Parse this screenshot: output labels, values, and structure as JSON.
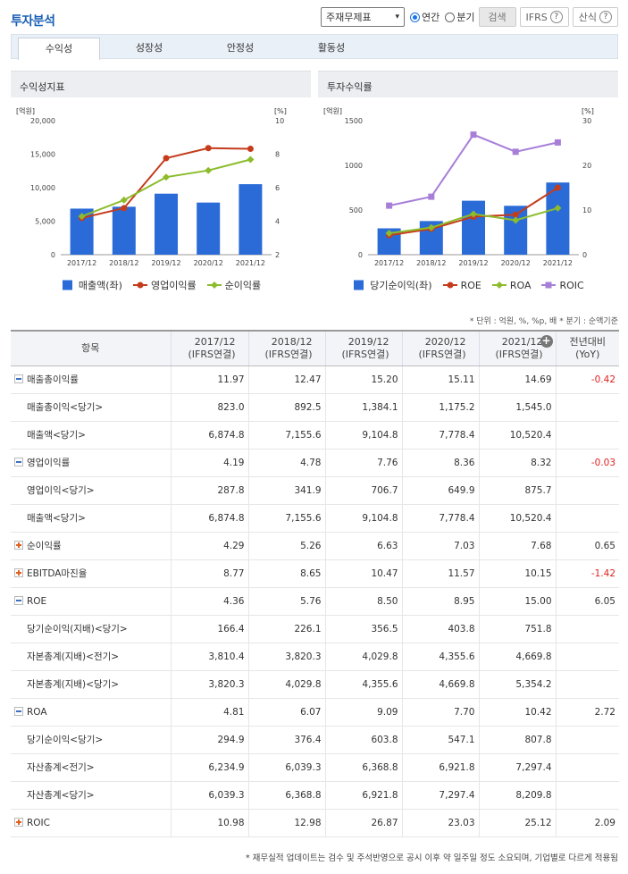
{
  "header": {
    "title": "투자분석",
    "statement_select": "주재무제표",
    "radio_annual": "연간",
    "radio_quarter": "분기",
    "search_label": "검색",
    "ifrs_label": "IFRS",
    "formula_label": "산식",
    "help_glyph": "?"
  },
  "tabs": [
    "수익성",
    "성장성",
    "안정성",
    "활동성"
  ],
  "colors": {
    "bar": "#2a6bd8",
    "red": "#c43c1c",
    "green": "#8cbc2c",
    "purple": "#a77fd8"
  },
  "chart_left": {
    "title": "수익성지표",
    "unit_left": "[억원]",
    "unit_right": "[%]",
    "legend": [
      "매출액(좌)",
      "영업이익률",
      "순이익률"
    ],
    "chart_data": {
      "type": "bar",
      "categories": [
        "2017/12",
        "2018/12",
        "2019/12",
        "2020/12",
        "2021/12"
      ],
      "y_ticks": [
        "0",
        "5,000",
        "10,000",
        "15,000",
        "20,000"
      ],
      "y2_ticks": [
        "2",
        "4",
        "6",
        "8",
        "10"
      ],
      "ylim": [
        0,
        20000
      ],
      "y2lim": [
        2,
        10
      ],
      "series": [
        {
          "name": "매출액(좌)",
          "kind": "bar",
          "values": [
            6874.8,
            7155.6,
            9104.8,
            7778.4,
            10520.4
          ]
        },
        {
          "name": "영업이익률",
          "kind": "line",
          "values": [
            4.19,
            4.78,
            7.76,
            8.36,
            8.32
          ]
        },
        {
          "name": "순이익률",
          "kind": "line",
          "values": [
            4.29,
            5.26,
            6.63,
            7.03,
            7.68
          ]
        }
      ]
    }
  },
  "chart_right": {
    "title": "투자수익률",
    "unit_left": "[억원]",
    "unit_right": "[%]",
    "legend": [
      "당기순이익(좌)",
      "ROE",
      "ROA",
      "ROIC"
    ],
    "chart_data": {
      "type": "bar",
      "categories": [
        "2017/12",
        "2018/12",
        "2019/12",
        "2020/12",
        "2021/12"
      ],
      "y_ticks": [
        "0",
        "500",
        "1000",
        "1500"
      ],
      "y2_ticks": [
        "0",
        "10",
        "20",
        "30"
      ],
      "ylim": [
        0,
        1500
      ],
      "y2lim": [
        0,
        30
      ],
      "series": [
        {
          "name": "당기순이익(좌)",
          "kind": "bar",
          "values": [
            294.9,
            376.4,
            603.8,
            547.1,
            807.8
          ]
        },
        {
          "name": "ROE",
          "kind": "line",
          "values": [
            4.36,
            5.76,
            8.5,
            8.95,
            15.0
          ]
        },
        {
          "name": "ROA",
          "kind": "line",
          "values": [
            4.81,
            6.07,
            9.09,
            7.7,
            10.42
          ]
        },
        {
          "name": "ROIC",
          "kind": "line",
          "values": [
            10.98,
            12.98,
            26.87,
            23.03,
            25.12
          ]
        }
      ]
    }
  },
  "unit_note": "* 단위 : 억원, %, %p, 배   * 분기 : 순액기준",
  "table": {
    "headers": [
      "항목",
      "2017/12\n(IFRS연결)",
      "2018/12\n(IFRS연결)",
      "2019/12\n(IFRS연결)",
      "2020/12\n(IFRS연결)",
      "2021/12\n(IFRS연결)",
      "전년대비\n(YoY)"
    ],
    "rows": [
      {
        "label": "매출총이익률",
        "type": "minus",
        "values": [
          "11.97",
          "12.47",
          "15.20",
          "15.11",
          "14.69"
        ],
        "yoy": "-0.42",
        "neg": true
      },
      {
        "label": "매출총이익<당기>",
        "type": "sub",
        "values": [
          "823.0",
          "892.5",
          "1,384.1",
          "1,175.2",
          "1,545.0"
        ],
        "yoy": ""
      },
      {
        "label": "매출액<당기>",
        "type": "sub",
        "values": [
          "6,874.8",
          "7,155.6",
          "9,104.8",
          "7,778.4",
          "10,520.4"
        ],
        "yoy": ""
      },
      {
        "label": "영업이익률",
        "type": "minus",
        "values": [
          "4.19",
          "4.78",
          "7.76",
          "8.36",
          "8.32"
        ],
        "yoy": "-0.03",
        "neg": true
      },
      {
        "label": "영업이익<당기>",
        "type": "sub",
        "values": [
          "287.8",
          "341.9",
          "706.7",
          "649.9",
          "875.7"
        ],
        "yoy": ""
      },
      {
        "label": "매출액<당기>",
        "type": "sub",
        "values": [
          "6,874.8",
          "7,155.6",
          "9,104.8",
          "7,778.4",
          "10,520.4"
        ],
        "yoy": ""
      },
      {
        "label": "순이익률",
        "type": "plus",
        "values": [
          "4.29",
          "5.26",
          "6.63",
          "7.03",
          "7.68"
        ],
        "yoy": "0.65"
      },
      {
        "label": "EBITDA마진율",
        "type": "plus",
        "values": [
          "8.77",
          "8.65",
          "10.47",
          "11.57",
          "10.15"
        ],
        "yoy": "-1.42",
        "neg": true
      },
      {
        "label": "ROE",
        "type": "minus",
        "values": [
          "4.36",
          "5.76",
          "8.50",
          "8.95",
          "15.00"
        ],
        "yoy": "6.05"
      },
      {
        "label": "당기순이익(지배)<당기>",
        "type": "sub",
        "values": [
          "166.4",
          "226.1",
          "356.5",
          "403.8",
          "751.8"
        ],
        "yoy": ""
      },
      {
        "label": "자본총계(지배)<전기>",
        "type": "sub",
        "values": [
          "3,810.4",
          "3,820.3",
          "4,029.8",
          "4,355.6",
          "4,669.8"
        ],
        "yoy": ""
      },
      {
        "label": "자본총계(지배)<당기>",
        "type": "sub",
        "values": [
          "3,820.3",
          "4,029.8",
          "4,355.6",
          "4,669.8",
          "5,354.2"
        ],
        "yoy": ""
      },
      {
        "label": "ROA",
        "type": "minus",
        "values": [
          "4.81",
          "6.07",
          "9.09",
          "7.70",
          "10.42"
        ],
        "yoy": "2.72"
      },
      {
        "label": "당기순이익<당기>",
        "type": "sub",
        "values": [
          "294.9",
          "376.4",
          "603.8",
          "547.1",
          "807.8"
        ],
        "yoy": ""
      },
      {
        "label": "자산총계<전기>",
        "type": "sub",
        "values": [
          "6,234.9",
          "6,039.3",
          "6,368.8",
          "6,921.8",
          "7,297.4"
        ],
        "yoy": ""
      },
      {
        "label": "자산총계<당기>",
        "type": "sub",
        "values": [
          "6,039.3",
          "6,368.8",
          "6,921.8",
          "7,297.4",
          "8,209.8"
        ],
        "yoy": ""
      },
      {
        "label": "ROIC",
        "type": "plus",
        "values": [
          "10.98",
          "12.98",
          "26.87",
          "23.03",
          "25.12"
        ],
        "yoy": "2.09"
      }
    ]
  },
  "footnote": "* 재무실적 업데이트는 검수 및 주석반영으로 공시 이후 약 일주일 정도 소요되며, 기업별로 다르게 적용됨"
}
